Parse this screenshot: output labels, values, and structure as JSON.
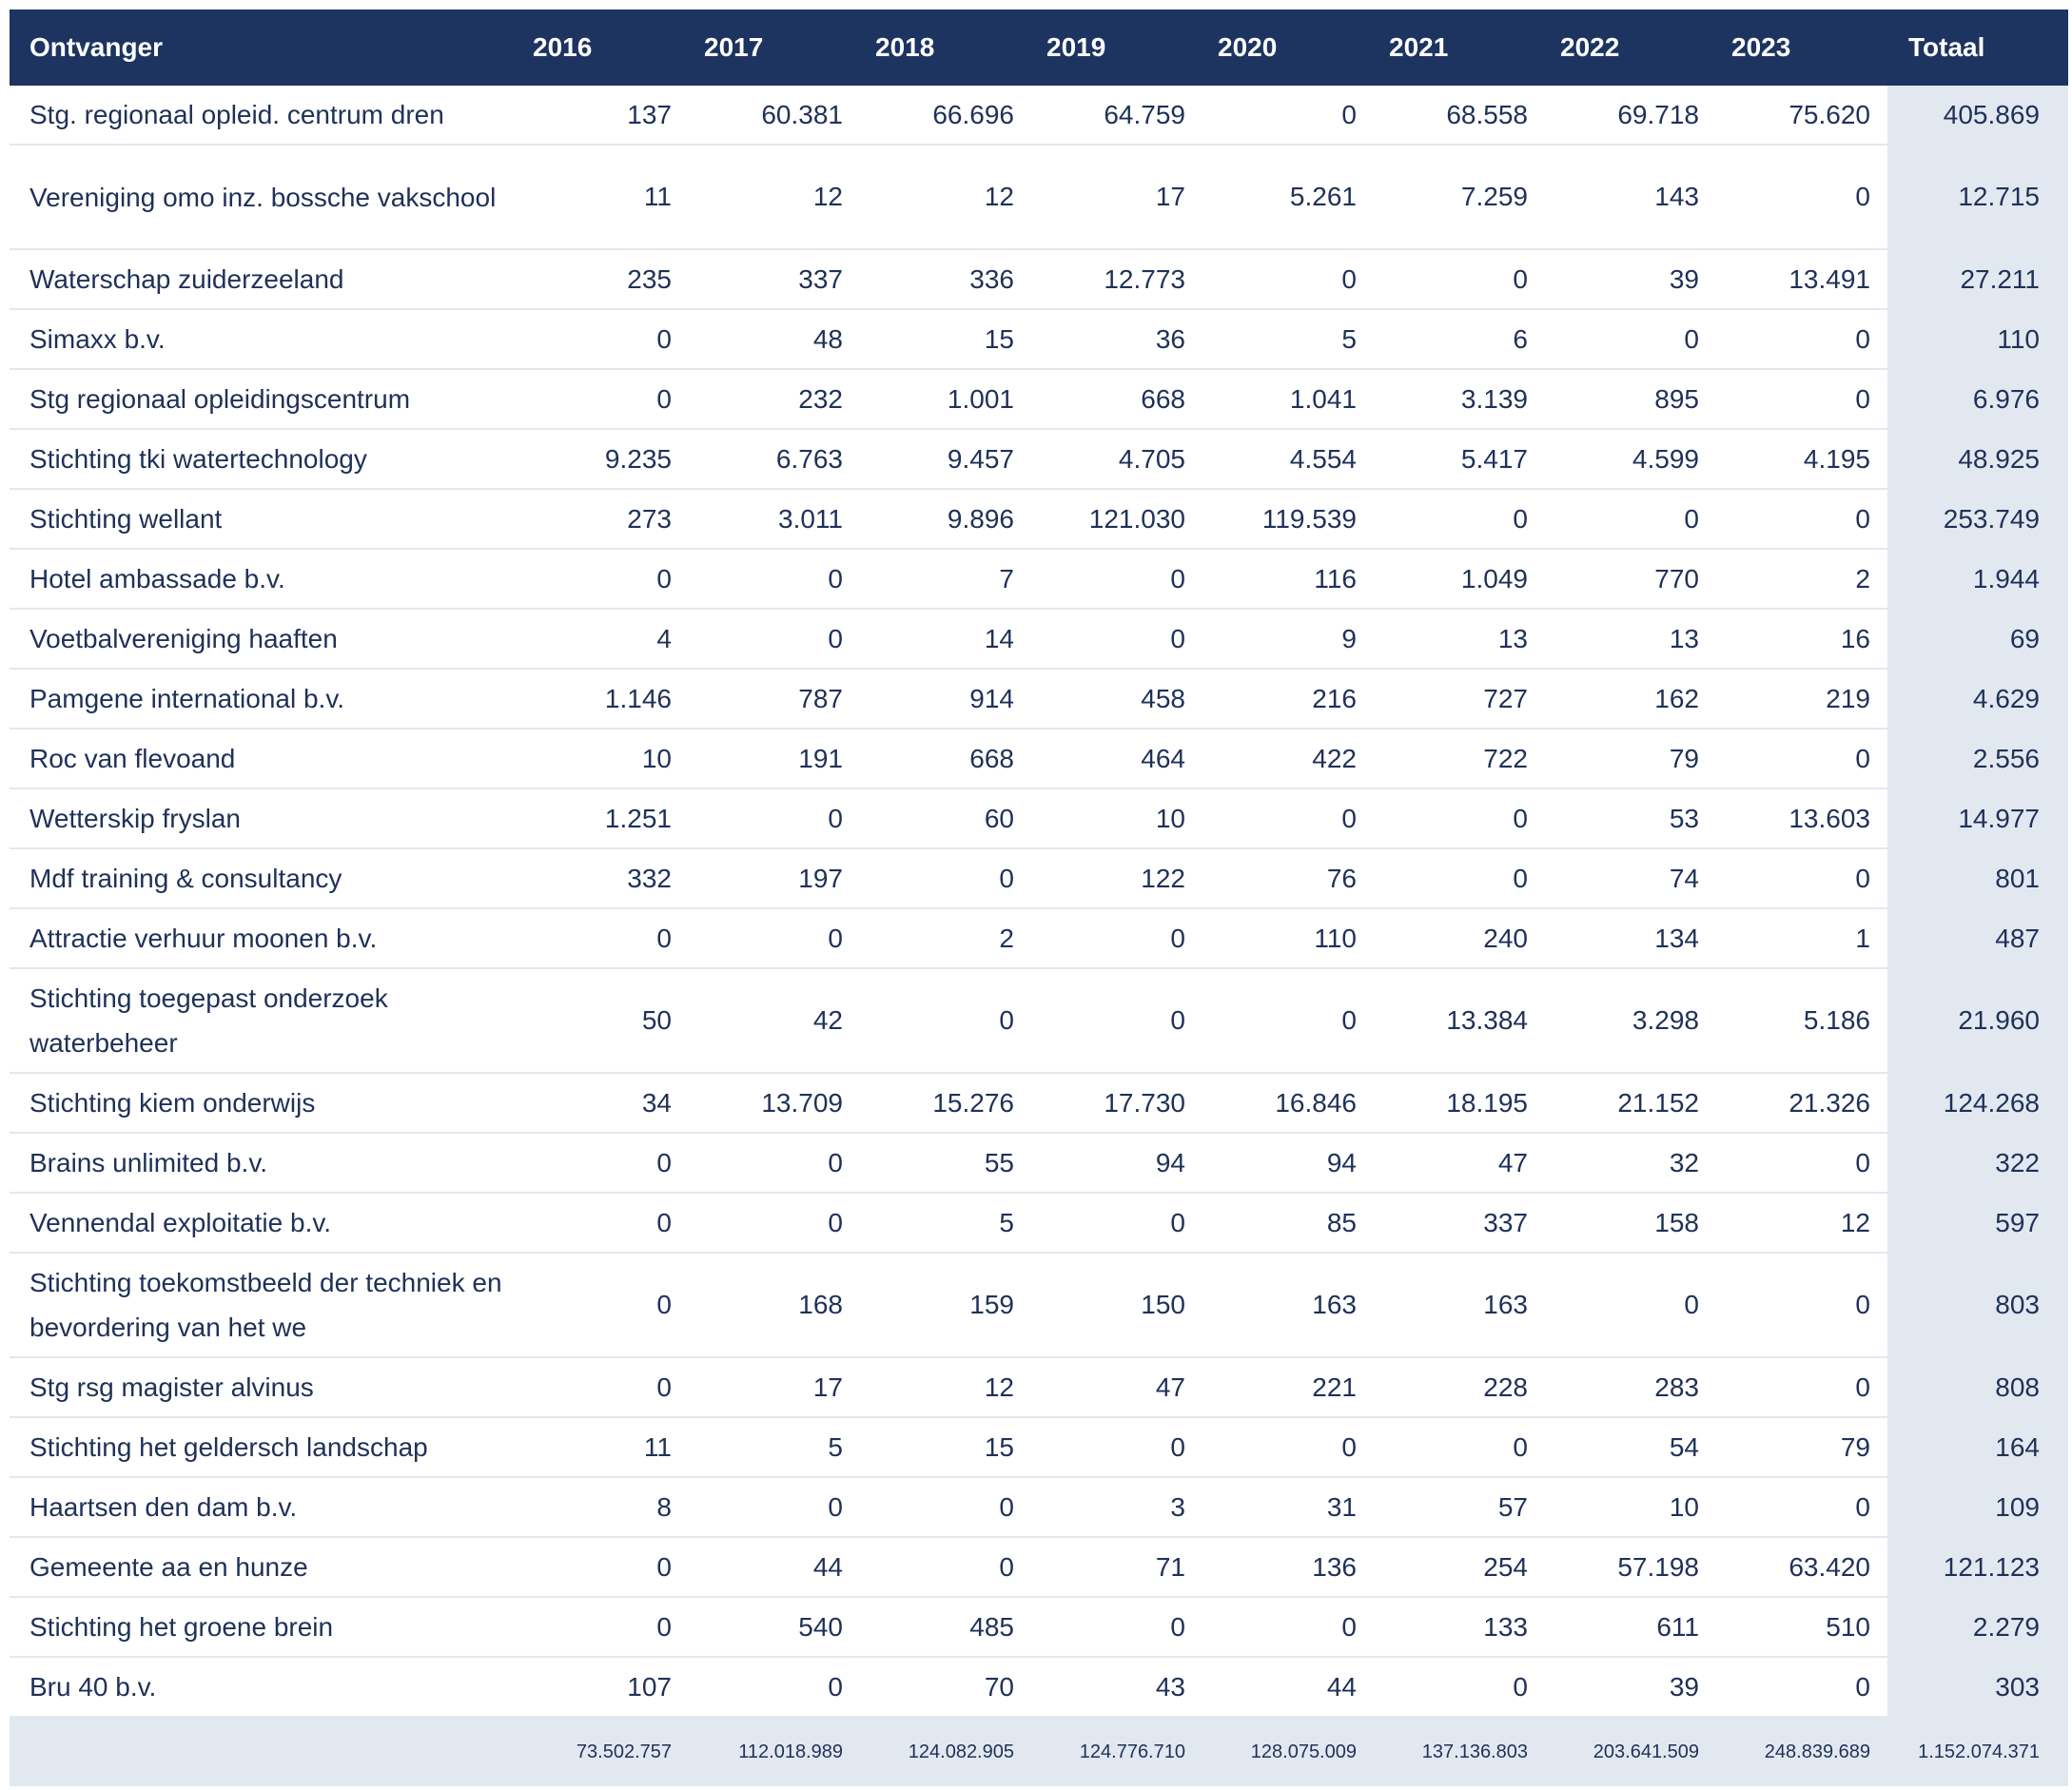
{
  "header": {
    "recipient_label": "Ontvanger",
    "years": [
      "2016",
      "2017",
      "2018",
      "2019",
      "2020",
      "2021",
      "2022",
      "2023"
    ],
    "total_label": "Totaal"
  },
  "rows": [
    {
      "name": "Stg. regionaal opleid. centrum dren",
      "values": [
        "137",
        "60.381",
        "66.696",
        "64.759",
        "0",
        "68.558",
        "69.718",
        "75.620"
      ],
      "total": "405.869"
    },
    {
      "name": "Vereniging omo inz. bossche vakschool",
      "values": [
        "11",
        "12",
        "12",
        "17",
        "5.261",
        "7.259",
        "143",
        "0"
      ],
      "total": "12.715"
    },
    {
      "name": "Waterschap zuiderzeeland",
      "values": [
        "235",
        "337",
        "336",
        "12.773",
        "0",
        "0",
        "39",
        "13.491"
      ],
      "total": "27.211"
    },
    {
      "name": "Simaxx b.v.",
      "values": [
        "0",
        "48",
        "15",
        "36",
        "5",
        "6",
        "0",
        "0"
      ],
      "total": "110"
    },
    {
      "name": "Stg regionaal opleidingscentrum",
      "values": [
        "0",
        "232",
        "1.001",
        "668",
        "1.041",
        "3.139",
        "895",
        "0"
      ],
      "total": "6.976"
    },
    {
      "name": "Stichting tki watertechnology",
      "values": [
        "9.235",
        "6.763",
        "9.457",
        "4.705",
        "4.554",
        "5.417",
        "4.599",
        "4.195"
      ],
      "total": "48.925"
    },
    {
      "name": "Stichting wellant",
      "values": [
        "273",
        "3.011",
        "9.896",
        "121.030",
        "119.539",
        "0",
        "0",
        "0"
      ],
      "total": "253.749"
    },
    {
      "name": "Hotel ambassade b.v.",
      "values": [
        "0",
        "0",
        "7",
        "0",
        "116",
        "1.049",
        "770",
        "2"
      ],
      "total": "1.944"
    },
    {
      "name": "Voetbalvereniging haaften",
      "values": [
        "4",
        "0",
        "14",
        "0",
        "9",
        "13",
        "13",
        "16"
      ],
      "total": "69"
    },
    {
      "name": "Pamgene international b.v.",
      "values": [
        "1.146",
        "787",
        "914",
        "458",
        "216",
        "727",
        "162",
        "219"
      ],
      "total": "4.629"
    },
    {
      "name": "Roc van flevoand",
      "values": [
        "10",
        "191",
        "668",
        "464",
        "422",
        "722",
        "79",
        "0"
      ],
      "total": "2.556"
    },
    {
      "name": "Wetterskip fryslan",
      "values": [
        "1.251",
        "0",
        "60",
        "10",
        "0",
        "0",
        "53",
        "13.603"
      ],
      "total": "14.977"
    },
    {
      "name": "Mdf training & consultancy",
      "values": [
        "332",
        "197",
        "0",
        "122",
        "76",
        "0",
        "74",
        "0"
      ],
      "total": "801"
    },
    {
      "name": "Attractie verhuur moonen b.v.",
      "values": [
        "0",
        "0",
        "2",
        "0",
        "110",
        "240",
        "134",
        "1"
      ],
      "total": "487"
    },
    {
      "name": "Stichting toegepast onderzoek waterbeheer",
      "values": [
        "50",
        "42",
        "0",
        "0",
        "0",
        "13.384",
        "3.298",
        "5.186"
      ],
      "total": "21.960"
    },
    {
      "name": "Stichting kiem onderwijs",
      "values": [
        "34",
        "13.709",
        "15.276",
        "17.730",
        "16.846",
        "18.195",
        "21.152",
        "21.326"
      ],
      "total": "124.268"
    },
    {
      "name": "Brains unlimited b.v.",
      "values": [
        "0",
        "0",
        "55",
        "94",
        "94",
        "47",
        "32",
        "0"
      ],
      "total": "322"
    },
    {
      "name": "Vennendal exploitatie b.v.",
      "values": [
        "0",
        "0",
        "5",
        "0",
        "85",
        "337",
        "158",
        "12"
      ],
      "total": "597"
    },
    {
      "name": "Stichting toekomstbeeld der techniek en bevordering van het we",
      "values": [
        "0",
        "168",
        "159",
        "150",
        "163",
        "163",
        "0",
        "0"
      ],
      "total": "803"
    },
    {
      "name": "Stg rsg magister alvinus",
      "values": [
        "0",
        "17",
        "12",
        "47",
        "221",
        "228",
        "283",
        "0"
      ],
      "total": "808"
    },
    {
      "name": "Stichting het geldersch landschap",
      "values": [
        "11",
        "5",
        "15",
        "0",
        "0",
        "0",
        "54",
        "79"
      ],
      "total": "164"
    },
    {
      "name": "Haartsen den dam b.v.",
      "values": [
        "8",
        "0",
        "0",
        "3",
        "31",
        "57",
        "10",
        "0"
      ],
      "total": "109"
    },
    {
      "name": "Gemeente aa en hunze",
      "values": [
        "0",
        "44",
        "0",
        "71",
        "136",
        "254",
        "57.198",
        "63.420"
      ],
      "total": "121.123"
    },
    {
      "name": "Stichting het groene brein",
      "values": [
        "0",
        "540",
        "485",
        "0",
        "0",
        "133",
        "611",
        "510"
      ],
      "total": "2.279"
    },
    {
      "name": "Bru 40 b.v.",
      "values": [
        "107",
        "0",
        "70",
        "43",
        "44",
        "0",
        "39",
        "0"
      ],
      "total": "303"
    }
  ],
  "footer": {
    "totals": [
      "73.502.757",
      "112.018.989",
      "124.082.905",
      "124.776.710",
      "128.075.009",
      "137.136.803",
      "203.641.509",
      "248.839.689"
    ],
    "grand_total": "1.152.074.371"
  },
  "colors": {
    "header_bg": "#1d3461",
    "header_text": "#ffffff",
    "body_text": "#1f3158",
    "total_column_bg": "#e2e8f0",
    "row_divider": "#e2e8f0"
  }
}
